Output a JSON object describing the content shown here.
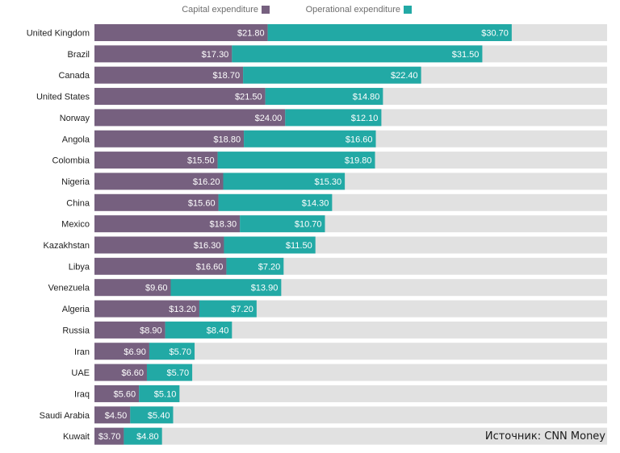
{
  "chart_data": {
    "type": "bar",
    "orientation": "horizontal",
    "stacked": true,
    "categories": [
      "United Kingdom",
      "Brazil",
      "Canada",
      "United States",
      "Norway",
      "Angola",
      "Colombia",
      "Nigeria",
      "China",
      "Mexico",
      "Kazakhstan",
      "Libya",
      "Venezuela",
      "Algeria",
      "Russia",
      "Iran",
      "UAE",
      "Iraq",
      "Saudi Arabia",
      "Kuwait"
    ],
    "series": [
      {
        "name": "Capital expenditure",
        "color": "#76607f",
        "values": [
          21.8,
          17.3,
          18.7,
          21.5,
          24.0,
          18.8,
          15.5,
          16.2,
          15.6,
          18.3,
          16.3,
          16.6,
          9.6,
          13.2,
          8.9,
          6.9,
          6.6,
          5.6,
          4.5,
          3.7
        ],
        "labels": [
          "$21.80",
          "$17.30",
          "$18.70",
          "$21.50",
          "$24.00",
          "$18.80",
          "$15.50",
          "$16.20",
          "$15.60",
          "$18.30",
          "$16.30",
          "$16.60",
          "$9.60",
          "$13.20",
          "$8.90",
          "$6.90",
          "$6.60",
          "$5.60",
          "$4.50",
          "$3.70"
        ]
      },
      {
        "name": "Operational expenditure",
        "color": "#22a9a5",
        "values": [
          30.7,
          31.5,
          22.4,
          14.8,
          12.1,
          16.6,
          19.8,
          15.3,
          14.3,
          10.7,
          11.5,
          7.2,
          13.9,
          7.2,
          8.4,
          5.7,
          5.7,
          5.1,
          5.4,
          4.8
        ],
        "labels": [
          "$30.70",
          "$31.50",
          "$22.40",
          "$14.80",
          "$12.10",
          "$16.60",
          "$19.80",
          "$15.30",
          "$14.30",
          "$10.70",
          "$11.50",
          "$7.20",
          "$13.90",
          "$7.20",
          "$8.40",
          "$5.70",
          "$5.70",
          "$5.10",
          "$5.40",
          "$4.80"
        ]
      }
    ],
    "xlim": [
      0,
      64.5
    ],
    "background_track_color": "#e1e1e1",
    "legend": "top-center",
    "title": "",
    "xlabel": "",
    "ylabel": ""
  },
  "source_note": "Источник: CNN Money"
}
